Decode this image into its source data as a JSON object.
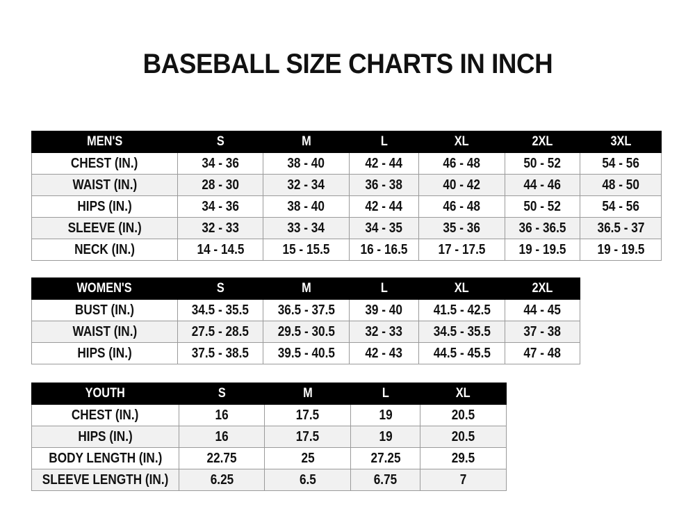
{
  "title": "BASEBALL SIZE CHARTS IN INCH",
  "tables": [
    {
      "id": "mens",
      "header": [
        "MEN'S",
        "S",
        "M",
        "L",
        "XL",
        "2XL",
        "3XL"
      ],
      "rows": [
        [
          "CHEST (IN.)",
          "34 - 36",
          "38 - 40",
          "42 - 44",
          "46 - 48",
          "50 - 52",
          "54 - 56"
        ],
        [
          "WAIST (IN.)",
          "28 - 30",
          "32 - 34",
          "36 - 38",
          "40 - 42",
          "44 - 46",
          "48 - 50"
        ],
        [
          "HIPS (IN.)",
          "34 - 36",
          "38 - 40",
          "42 - 44",
          "46 - 48",
          "50 - 52",
          "54 - 56"
        ],
        [
          "SLEEVE (IN.)",
          "32 - 33",
          "33 - 34",
          "34 - 35",
          "35 - 36",
          "36 - 36.5",
          "36.5 - 37"
        ],
        [
          "NECK (IN.)",
          "14 - 14.5",
          "15 - 15.5",
          "16 - 16.5",
          "17 - 17.5",
          "19 - 19.5",
          "19 - 19.5"
        ]
      ]
    },
    {
      "id": "womens",
      "header": [
        "WOMEN'S",
        "S",
        "M",
        "L",
        "XL",
        "2XL"
      ],
      "rows": [
        [
          "BUST (IN.)",
          "34.5 - 35.5",
          "36.5 - 37.5",
          "39 - 40",
          "41.5 - 42.5",
          "44 - 45"
        ],
        [
          "WAIST (IN.)",
          "27.5 - 28.5",
          "29.5 - 30.5",
          "32 - 33",
          "34.5 - 35.5",
          "37 - 38"
        ],
        [
          "HIPS (IN.)",
          "37.5 - 38.5",
          "39.5 - 40.5",
          "42 - 43",
          "44.5 - 45.5",
          "47 - 48"
        ]
      ]
    },
    {
      "id": "youth",
      "header": [
        "YOUTH",
        "S",
        "M",
        "L",
        "XL"
      ],
      "rows": [
        [
          "CHEST (IN.)",
          "16",
          "17.5",
          "19",
          "20.5"
        ],
        [
          "HIPS (IN.)",
          "16",
          "17.5",
          "19",
          "20.5"
        ],
        [
          "BODY LENGTH (IN.)",
          "22.75",
          "25",
          "27.25",
          "29.5"
        ],
        [
          "SLEEVE LENGTH (IN.)",
          "6.25",
          "6.5",
          "6.75",
          "7"
        ]
      ]
    }
  ]
}
